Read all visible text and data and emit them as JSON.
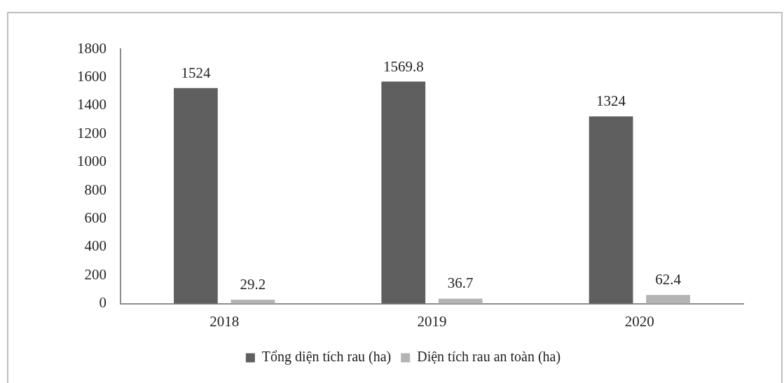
{
  "chart_data": {
    "type": "bar",
    "categories": [
      "2018",
      "2019",
      "2020"
    ],
    "series": [
      {
        "name": "Tổng diện tích rau (ha)",
        "color": "#5f5f5f",
        "values": [
          1524,
          1569.8,
          1324
        ]
      },
      {
        "name": "Diện tích rau an toàn (ha)",
        "color": "#b3b3b3",
        "values": [
          29.2,
          36.7,
          62.4
        ]
      }
    ],
    "ylim": [
      0,
      1800
    ],
    "yticks": [
      0,
      200,
      400,
      600,
      800,
      1000,
      1200,
      1400,
      1600,
      1800
    ],
    "grid": false,
    "legend": "bottom",
    "data_labels": true
  }
}
